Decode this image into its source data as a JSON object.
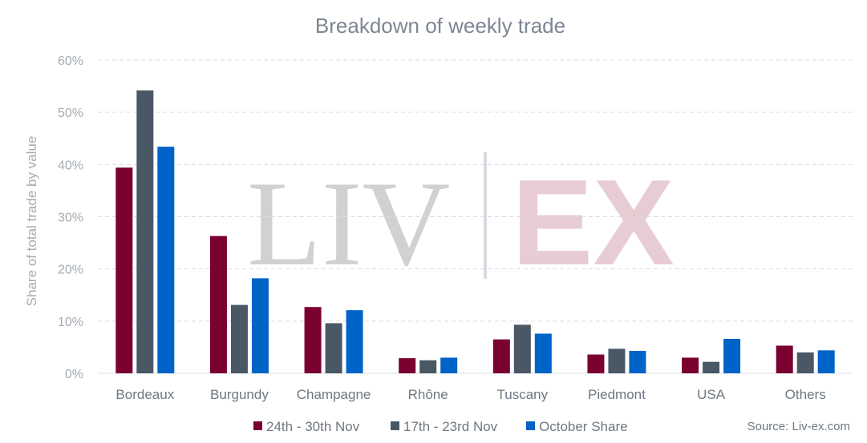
{
  "chart_data": {
    "type": "bar",
    "title": "Breakdown of weekly trade",
    "ylabel": "Share of total trade by value",
    "xlabel": "",
    "ylim": [
      0,
      60
    ],
    "yticks": [
      "0%",
      "10%",
      "20%",
      "30%",
      "40%",
      "50%",
      "60%"
    ],
    "categories": [
      "Bordeaux",
      "Burgundy",
      "Champagne",
      "Rhône",
      "Tuscany",
      "Piedmont",
      "USA",
      "Others"
    ],
    "series": [
      {
        "name": "24th - 30th Nov",
        "color": "#7a0030",
        "values": [
          39.4,
          26.3,
          12.7,
          2.9,
          6.5,
          3.6,
          3.0,
          5.3
        ]
      },
      {
        "name": "17th - 23rd Nov",
        "color": "#4a5866",
        "values": [
          54.2,
          13.1,
          9.6,
          2.5,
          9.3,
          4.7,
          2.2,
          4.0
        ]
      },
      {
        "name": "October Share",
        "color": "#0063c8",
        "values": [
          43.4,
          18.2,
          12.1,
          3.0,
          7.6,
          4.3,
          6.6,
          4.4
        ]
      }
    ],
    "grid": true,
    "legend_position": "bottom",
    "source": "Source: Liv-ex.com",
    "watermark": {
      "left": "LIV",
      "right": "EX"
    }
  }
}
